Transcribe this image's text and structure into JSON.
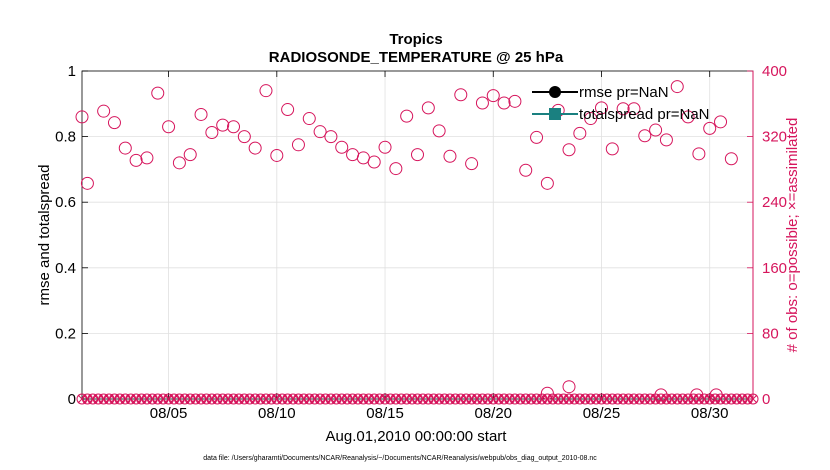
{
  "chart_data": {
    "type": "scatter",
    "title": "Tropics",
    "subtitle": "RADIOSONDE_TEMPERATURE @ 25 hPa",
    "xlabel": "Aug.01,2010 00:00:00 start",
    "ylabel_left": "rmse and totalspread",
    "ylabel_right": "# of obs: o=possible; ×=assimilated",
    "x_tick_labels": [
      "08/05",
      "08/10",
      "08/15",
      "08/20",
      "08/25",
      "08/30"
    ],
    "x_ticks_day": [
      5,
      10,
      15,
      20,
      25,
      30
    ],
    "xlim_day": [
      1,
      32
    ],
    "ylim_left": [
      0,
      1
    ],
    "y_left_ticks": [
      "0",
      "0.2",
      "0.4",
      "0.6",
      "0.8",
      "1"
    ],
    "ylim_right": [
      0,
      400
    ],
    "y_right_ticks": [
      "0",
      "80",
      "160",
      "240",
      "320",
      "400"
    ],
    "grid": true,
    "legend_position": "top-right",
    "legend": [
      {
        "name": "rmse  pr=NaN",
        "marker": "filled-circle",
        "color": "#000000"
      },
      {
        "name": "totalspread  pr=NaN",
        "marker": "filled-square",
        "color": "#1a8080"
      }
    ],
    "colors": {
      "obs": "#d6155c",
      "axis": "#000000",
      "grid": "#e0e0e0"
    },
    "series": [
      {
        "name": "possible obs (o)",
        "axis": "right",
        "marker": "open-circle",
        "points_day_value": [
          [
            1.0,
            344
          ],
          [
            1.25,
            263
          ],
          [
            2.0,
            351
          ],
          [
            2.5,
            337
          ],
          [
            3.0,
            306
          ],
          [
            3.5,
            291
          ],
          [
            4.0,
            294
          ],
          [
            4.5,
            373
          ],
          [
            5.0,
            332
          ],
          [
            5.5,
            288
          ],
          [
            6.0,
            298
          ],
          [
            6.5,
            347
          ],
          [
            7.0,
            325
          ],
          [
            7.5,
            334
          ],
          [
            8.0,
            332
          ],
          [
            8.5,
            320
          ],
          [
            9.0,
            306
          ],
          [
            9.5,
            376
          ],
          [
            10.0,
            297
          ],
          [
            10.5,
            353
          ],
          [
            11.0,
            310
          ],
          [
            11.5,
            342
          ],
          [
            12.0,
            326
          ],
          [
            12.5,
            320
          ],
          [
            13.0,
            307
          ],
          [
            13.5,
            298
          ],
          [
            14.0,
            294
          ],
          [
            14.5,
            289
          ],
          [
            15.0,
            307
          ],
          [
            15.5,
            281
          ],
          [
            16.0,
            345
          ],
          [
            16.5,
            298
          ],
          [
            17.0,
            355
          ],
          [
            17.5,
            327
          ],
          [
            18.0,
            296
          ],
          [
            18.5,
            371
          ],
          [
            19.0,
            287
          ],
          [
            19.5,
            361
          ],
          [
            20.0,
            370
          ],
          [
            20.5,
            361
          ],
          [
            21.0,
            363
          ],
          [
            21.5,
            279
          ],
          [
            22.0,
            319
          ],
          [
            22.5,
            263
          ],
          [
            23.0,
            352
          ],
          [
            23.5,
            304
          ],
          [
            24.0,
            324
          ],
          [
            24.5,
            342
          ],
          [
            25.0,
            355
          ],
          [
            25.5,
            305
          ],
          [
            26.0,
            354
          ],
          [
            26.5,
            354
          ],
          [
            27.0,
            321
          ],
          [
            27.5,
            328
          ],
          [
            28.0,
            316
          ],
          [
            28.5,
            381
          ],
          [
            29.0,
            344
          ],
          [
            29.5,
            299
          ],
          [
            30.0,
            330
          ],
          [
            30.5,
            338
          ],
          [
            31.0,
            293
          ]
        ]
      },
      {
        "name": "low possible obs (o)",
        "axis": "right",
        "marker": "open-circle",
        "points_day_value": [
          [
            22.5,
            7
          ],
          [
            23.5,
            15
          ],
          [
            27.75,
            5
          ],
          [
            29.4,
            5
          ],
          [
            30.3,
            5
          ]
        ]
      },
      {
        "name": "assimilated obs (×)",
        "axis": "right",
        "marker": "x",
        "note": "all zero, plotted every 6 hours from day 1 to day 32",
        "value": 0,
        "step_day": 0.25
      }
    ]
  },
  "footnote": "data file: /Users/gharamti/Documents/NCAR/Reanalysis/~/Documents/NCAR/Reanalysis/webpub/obs_diag_output_2010-08.nc"
}
